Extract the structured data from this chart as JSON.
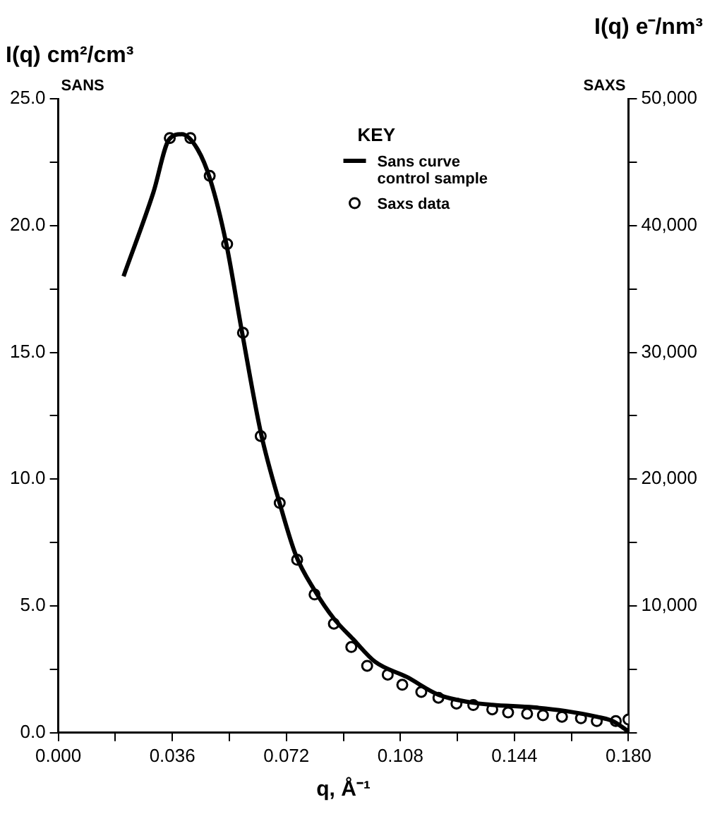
{
  "chart_data": {
    "type": "line",
    "ylabel": "I(q) cm²/cm³",
    "y2label": "I(q) e⁻/nm³",
    "xlabel": "q, Å⁻¹",
    "legend_title": "KEY",
    "legend": "top right",
    "grid": false,
    "annotations": [
      "SANS",
      "SAXS"
    ],
    "xlim": [
      0,
      0.18
    ],
    "xticks": [
      {
        "value": 0,
        "label": "0.000"
      },
      {
        "value": 0.018,
        "label": null
      },
      {
        "value": 0.036,
        "label": "0.036"
      },
      {
        "value": 0.054,
        "label": null
      },
      {
        "value": 0.072,
        "label": "0.072"
      },
      {
        "value": 0.09,
        "label": null
      },
      {
        "value": 0.108,
        "label": "0.108"
      },
      {
        "value": 0.126,
        "label": null
      },
      {
        "value": 0.144,
        "label": "0.144"
      },
      {
        "value": 0.162,
        "label": null
      },
      {
        "value": 0.18,
        "label": "0.180"
      }
    ],
    "ylim": [
      0,
      25
    ],
    "yticks": [
      {
        "value": 0,
        "label": "0.0"
      },
      {
        "value": 2.5,
        "label": null
      },
      {
        "value": 5,
        "label": "5.0"
      },
      {
        "value": 7.5,
        "label": null
      },
      {
        "value": 10,
        "label": "10.0"
      },
      {
        "value": 12.5,
        "label": null
      },
      {
        "value": 15,
        "label": "15.0"
      },
      {
        "value": 17.5,
        "label": null
      },
      {
        "value": 20,
        "label": "20.0"
      },
      {
        "value": 22.5,
        "label": null
      },
      {
        "value": 25,
        "label": "25.0"
      }
    ],
    "y2lim": [
      0,
      50000
    ],
    "y2ticks": [
      {
        "value": 0,
        "label": null
      },
      {
        "value": 5000,
        "label": null
      },
      {
        "value": 10000,
        "label": "10,000"
      },
      {
        "value": 15000,
        "label": null
      },
      {
        "value": 20000,
        "label": "20,000"
      },
      {
        "value": 25000,
        "label": null
      },
      {
        "value": 30000,
        "label": "30,000"
      },
      {
        "value": 35000,
        "label": null
      },
      {
        "value": 40000,
        "label": "40,000"
      },
      {
        "value": 45000,
        "label": null
      },
      {
        "value": 50000,
        "label": "50,000"
      }
    ],
    "series": [
      {
        "name": "Sans curve control sample",
        "type": "line",
        "marker": "none",
        "line_style": "solid",
        "color": "#000000",
        "x": [
          0.0206,
          0.03,
          0.035,
          0.039,
          0.044,
          0.048,
          0.053,
          0.058,
          0.064,
          0.07,
          0.075,
          0.081,
          0.087,
          0.093,
          0.1,
          0.11,
          0.12,
          0.13,
          0.137,
          0.15,
          0.16,
          0.17,
          0.175,
          0.18
        ],
        "values": [
          18.0,
          21.3,
          23.4,
          23.6,
          23.0,
          21.8,
          19.3,
          15.8,
          11.8,
          9.0,
          7.0,
          5.6,
          4.5,
          3.7,
          2.8,
          2.2,
          1.5,
          1.2,
          1.1,
          1.0,
          0.86,
          0.63,
          0.46,
          0.05
        ]
      },
      {
        "name": "Saxs data",
        "type": "scatter",
        "marker": "circle",
        "color": "#000000",
        "x": [
          0.0352,
          0.0417,
          0.0478,
          0.0533,
          0.0583,
          0.0639,
          0.0699,
          0.0754,
          0.0809,
          0.087,
          0.0925,
          0.0975,
          0.104,
          0.1086,
          0.1146,
          0.12,
          0.1257,
          0.131,
          0.137,
          0.142,
          0.148,
          0.153,
          0.159,
          0.165,
          0.17,
          0.176,
          0.18
        ],
        "values": [
          23.45,
          23.45,
          21.96,
          19.27,
          15.77,
          11.7,
          9.06,
          6.82,
          5.45,
          4.3,
          3.38,
          2.64,
          2.29,
          1.89,
          1.61,
          1.38,
          1.15,
          1.09,
          0.92,
          0.8,
          0.75,
          0.69,
          0.63,
          0.57,
          0.46,
          0.46,
          0.52
        ]
      }
    ]
  }
}
